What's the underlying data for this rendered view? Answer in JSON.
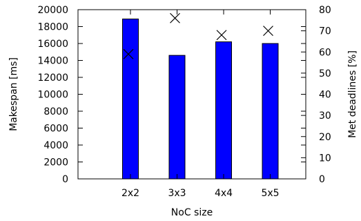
{
  "chart_data": {
    "type": "bar",
    "categories": [
      "2x2",
      "3x3",
      "4x4",
      "5x5"
    ],
    "series": [
      {
        "kind": "bar",
        "axis": "left",
        "color": "#0000ff",
        "values": [
          18900,
          14600,
          16200,
          16000
        ]
      },
      {
        "kind": "scatter",
        "axis": "right",
        "marker": "x",
        "color": "#000000",
        "values": [
          59,
          76,
          68,
          70
        ]
      }
    ],
    "xlabel": "NoC size",
    "ylabel": "Makespan [ms]",
    "y2label": "Met deadlines [%]",
    "ylim": [
      0,
      20000
    ],
    "y2lim": [
      0,
      80
    ],
    "yticks": [
      0,
      2000,
      4000,
      6000,
      8000,
      10000,
      12000,
      14000,
      16000,
      18000,
      20000
    ],
    "y2ticks": [
      0,
      10,
      20,
      30,
      40,
      50,
      60,
      70,
      80
    ],
    "grid": false,
    "legend": "none"
  }
}
